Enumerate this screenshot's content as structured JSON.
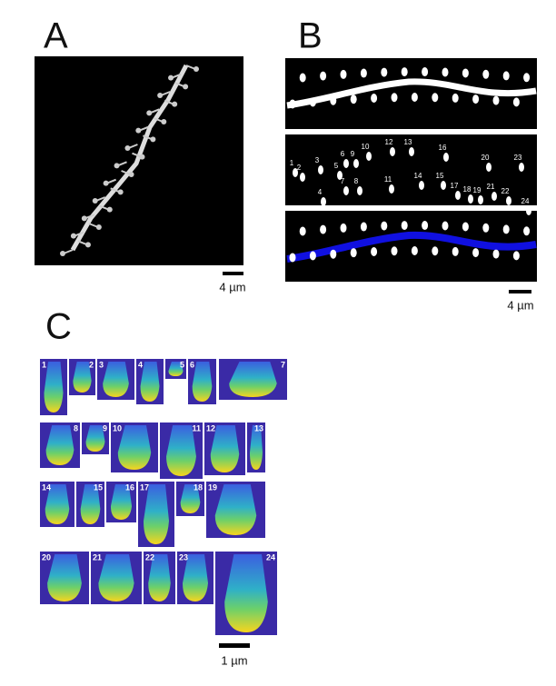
{
  "panel_a": {
    "label": "A",
    "scale": "4 µm"
  },
  "panel_b": {
    "label": "B",
    "scale": "4 µm",
    "spine_labels": [
      "1",
      "2",
      "3",
      "4",
      "5",
      "6",
      "7",
      "8",
      "9",
      "10",
      "11",
      "12",
      "13",
      "14",
      "15",
      "16",
      "17",
      "18",
      "19",
      "20",
      "21",
      "22",
      "23",
      "24"
    ]
  },
  "panel_c": {
    "label": "C",
    "scale": "1 µm",
    "tiles": [
      "1",
      "2",
      "3",
      "4",
      "5",
      "6",
      "7",
      "8",
      "9",
      "10",
      "11",
      "12",
      "13",
      "14",
      "15",
      "16",
      "17",
      "18",
      "19",
      "20",
      "21",
      "22",
      "23",
      "24"
    ]
  }
}
